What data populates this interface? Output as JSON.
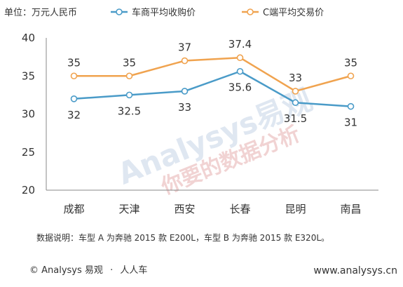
{
  "chart_data": {
    "type": "line",
    "unit_label": "单位：万元人民币",
    "categories": [
      "成都",
      "天津",
      "西安",
      "长春",
      "昆明",
      "南昌"
    ],
    "series": [
      {
        "name": "车商平均收购价",
        "color": "#4a9bc8",
        "values": [
          32,
          32.5,
          33,
          35.6,
          31.5,
          31
        ],
        "labels": [
          "32",
          "32.5",
          "33",
          "35.6",
          "31.5",
          "31"
        ]
      },
      {
        "name": "C端平均交易价",
        "color": "#f0a34f",
        "values": [
          35,
          35,
          37,
          37.4,
          33,
          35
        ],
        "labels": [
          "35",
          "35",
          "37",
          "37.4",
          "33",
          "35"
        ]
      }
    ],
    "yticks": [
      "20",
      "25",
      "30",
      "35",
      "40"
    ],
    "ylim": [
      20,
      40
    ],
    "grid": false,
    "legend_position": "top"
  },
  "note": "数据说明：车型 A 为奔驰 2015 款 E200L，车型 B 为奔驰 2015 款 E320L。",
  "footer": {
    "copyright": "© Analysys 易观",
    "dot": "·",
    "partner": "人人车",
    "website": "www.analysys.cn"
  },
  "watermark": {
    "line1": "Analysys易观",
    "line2": "你要的数据分析"
  }
}
